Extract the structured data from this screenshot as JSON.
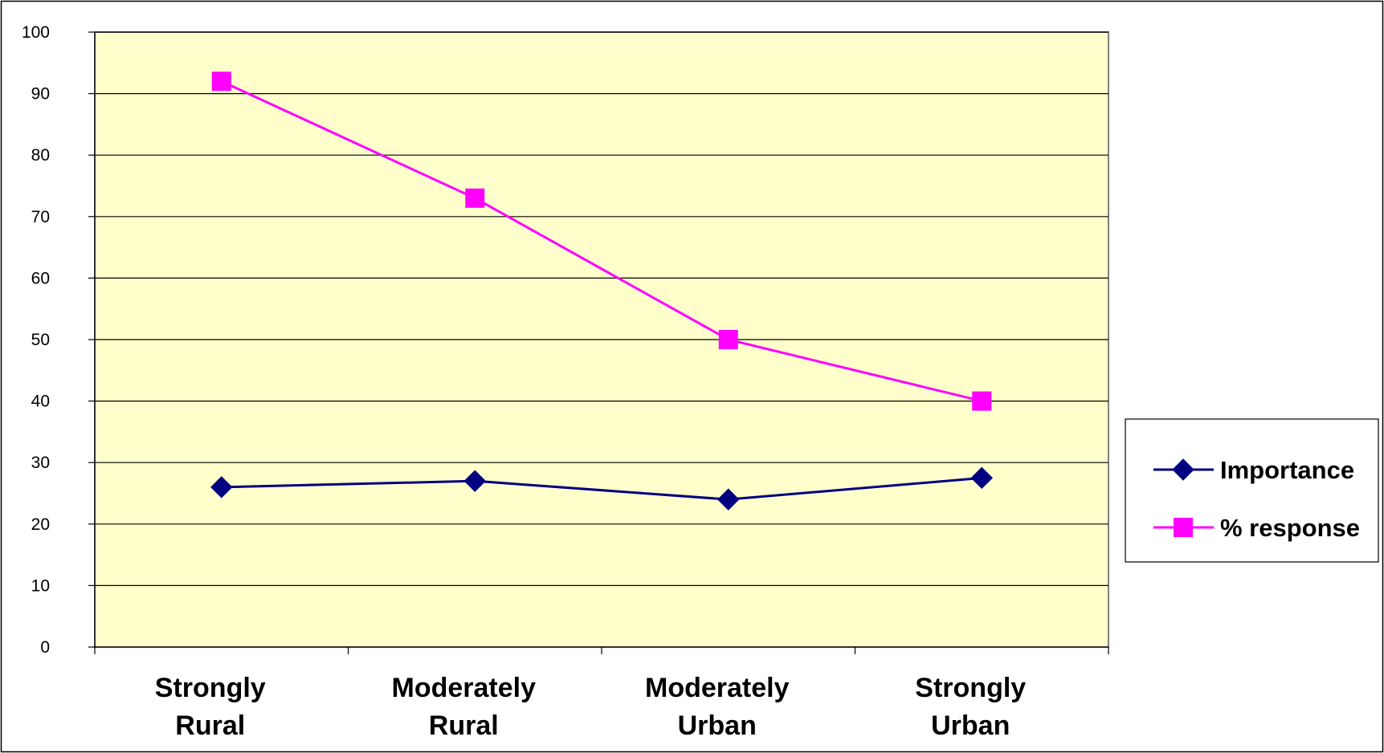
{
  "chart_data": {
    "type": "line",
    "title": "",
    "xlabel": "",
    "ylabel": "",
    "ylim": [
      0,
      100
    ],
    "yticks": [
      0,
      10,
      20,
      30,
      40,
      50,
      60,
      70,
      80,
      90,
      100
    ],
    "grid": true,
    "legend_position": "right",
    "categories": [
      [
        "Strongly",
        "Rural"
      ],
      [
        "Moderately",
        "Rural"
      ],
      [
        "Moderately",
        "Urban"
      ],
      [
        "Strongly",
        "Urban"
      ]
    ],
    "series": [
      {
        "name": "Importance",
        "values": [
          26,
          27,
          24,
          27.5
        ],
        "color": "#000080",
        "marker": "diamond"
      },
      {
        "name": "% response",
        "values": [
          92,
          73,
          50,
          40
        ],
        "color": "#ff00ff",
        "marker": "square"
      }
    ],
    "plot_background": "#ffffcc"
  }
}
